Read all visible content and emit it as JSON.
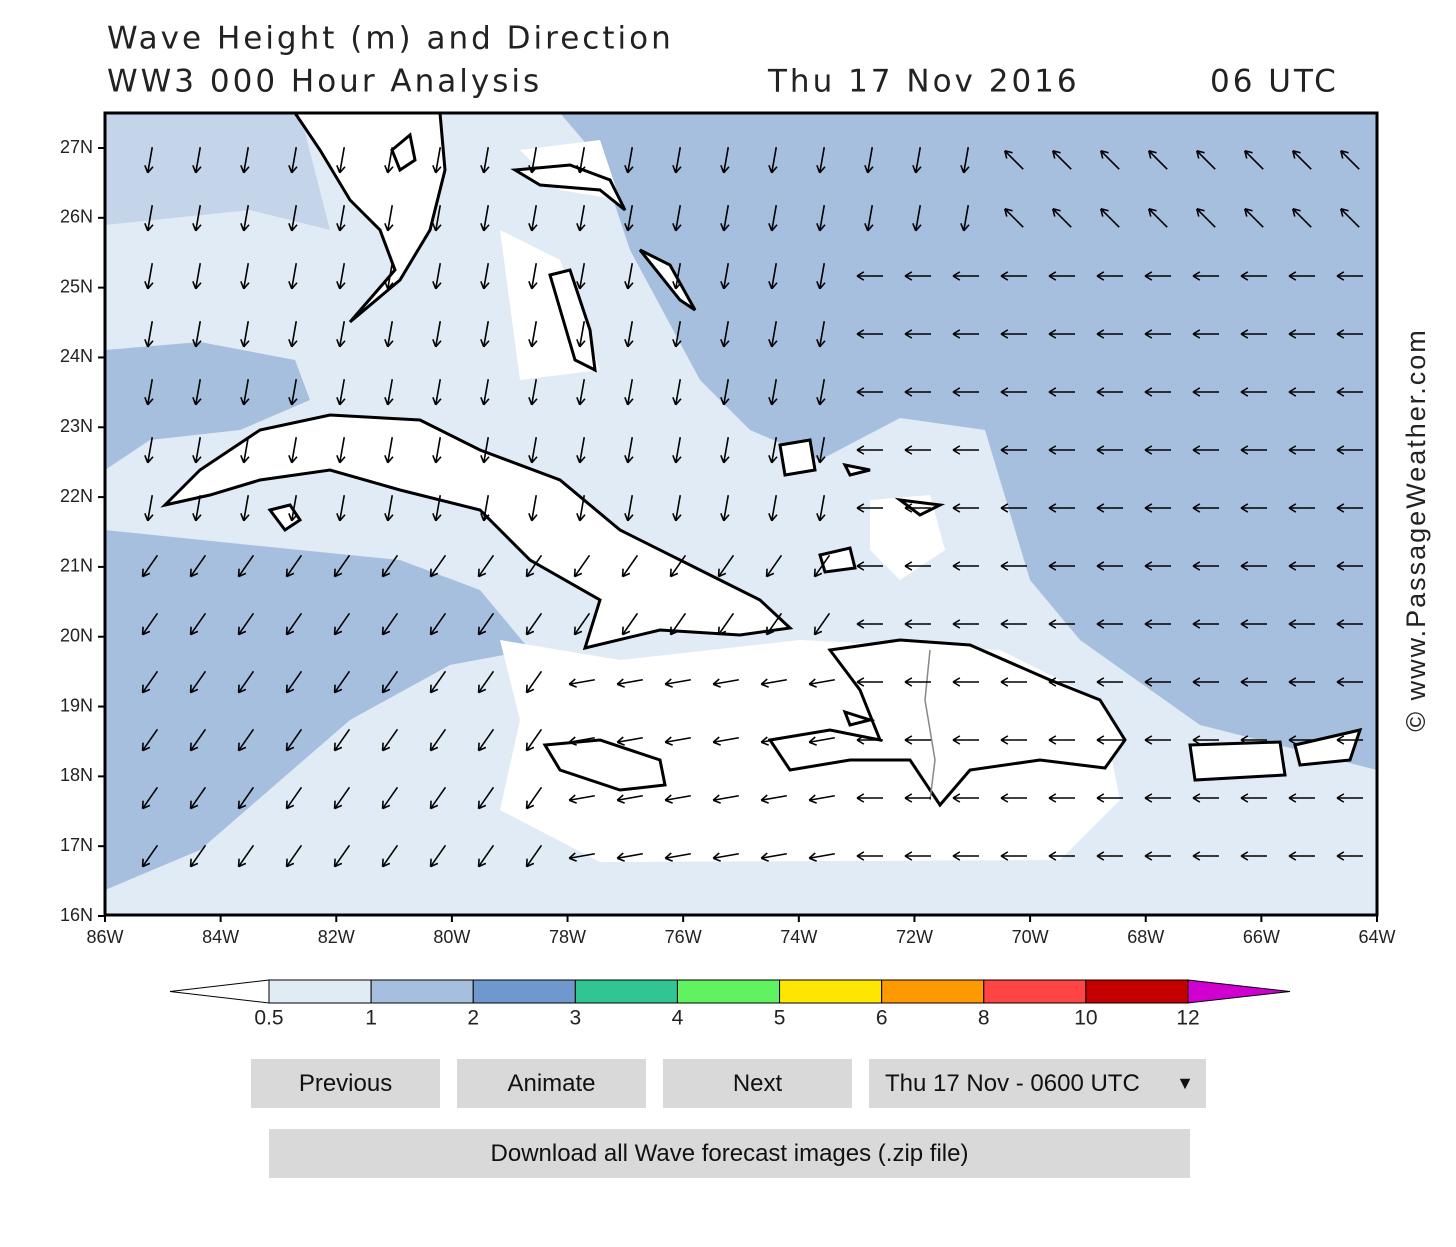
{
  "title": {
    "line1": "Wave Height (m) and Direction",
    "model": "WW3 000 Hour Analysis",
    "date": "Thu 17 Nov 2016",
    "time": "06 UTC"
  },
  "map": {
    "lat_labels": [
      "27N",
      "26N",
      "25N",
      "24N",
      "23N",
      "22N",
      "21N",
      "20N",
      "19N",
      "18N",
      "17N",
      "16N"
    ],
    "lon_labels": [
      "86W",
      "84W",
      "82W",
      "80W",
      "78W",
      "76W",
      "74W",
      "72W",
      "70W",
      "68W",
      "66W",
      "64W"
    ],
    "watermark": "© www.PassageWeather.com"
  },
  "legend": {
    "labels": [
      "0.5",
      "1",
      "2",
      "3",
      "4",
      "5",
      "6",
      "8",
      "10",
      "12"
    ],
    "colors": [
      "#ffffff",
      "#e1ebf5",
      "#a7bfdf",
      "#6f98cf",
      "#30c592",
      "#60f260",
      "#ffe600",
      "#ff9900",
      "#ff4444",
      "#c40000",
      "#d000d0"
    ]
  },
  "controls": {
    "buttons": [
      "Previous",
      "Animate",
      "Next"
    ],
    "select": "Thu 17 Nov - 0600 UTC",
    "download": "Download all Wave forecast images (.zip file)"
  }
}
